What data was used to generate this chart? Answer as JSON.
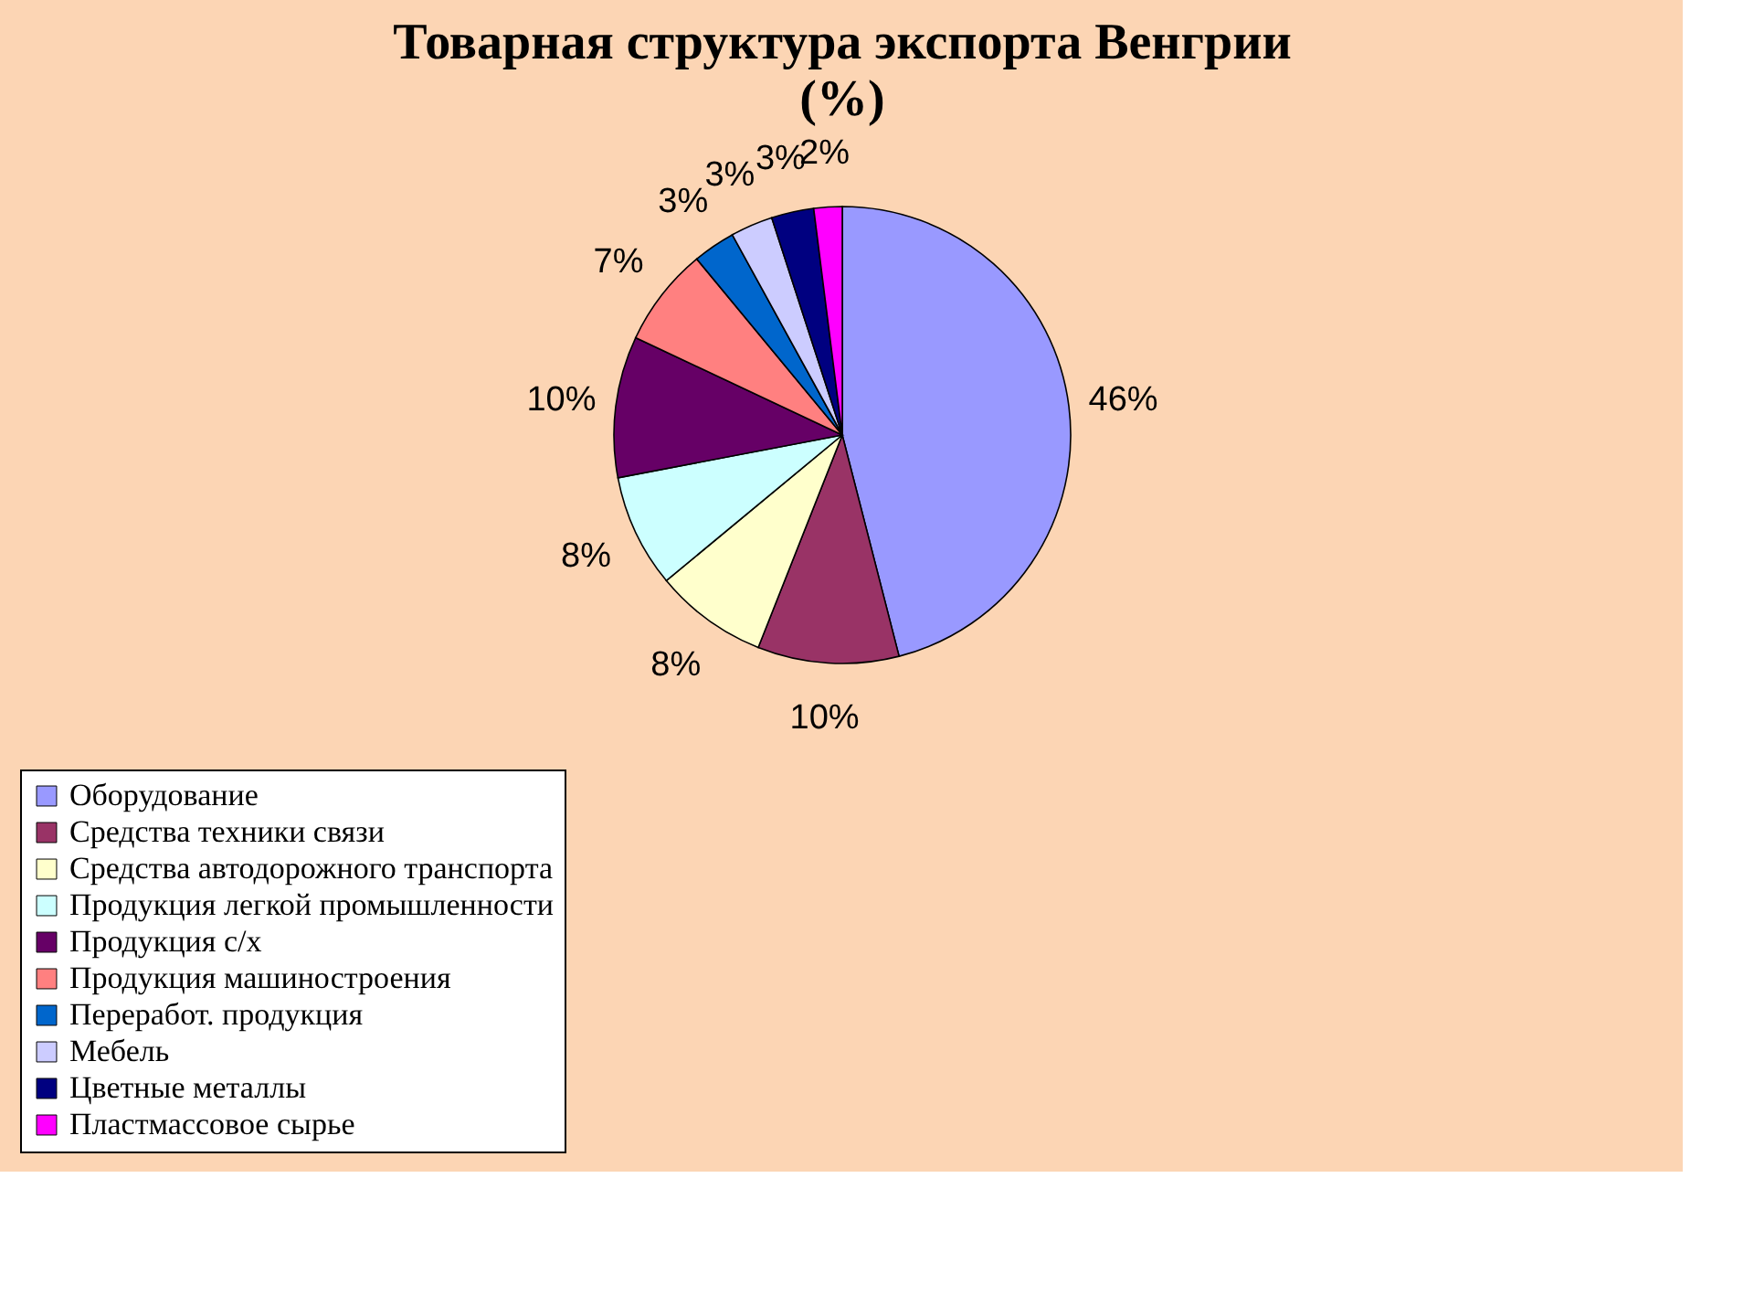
{
  "chart_data": {
    "type": "pie",
    "title": "Товарная структура экспорта Венгрии",
    "subtitle": "(%)",
    "categories": [
      "Оборудование",
      "Средства техники связи",
      "Средства автодорожного транспорта",
      "Продукция легкой промышленности",
      "Продукция с/х",
      "Продукция машиностроения",
      "Переработ. продукция",
      "Мебель",
      "Цветные металлы",
      "Пластмассовое сырье"
    ],
    "values": [
      46,
      10,
      8,
      8,
      10,
      7,
      3,
      3,
      3,
      2
    ],
    "colors": [
      "#9999ff",
      "#993366",
      "#ffffcc",
      "#ccffff",
      "#660066",
      "#ff8080",
      "#0066cc",
      "#ccccff",
      "#000080",
      "#ff00ff"
    ],
    "value_labels": [
      "46%",
      "10%",
      "8%",
      "8%",
      "10%",
      "7%",
      "3%",
      "3%",
      "3%",
      "2%"
    ],
    "legend": "bottom"
  }
}
